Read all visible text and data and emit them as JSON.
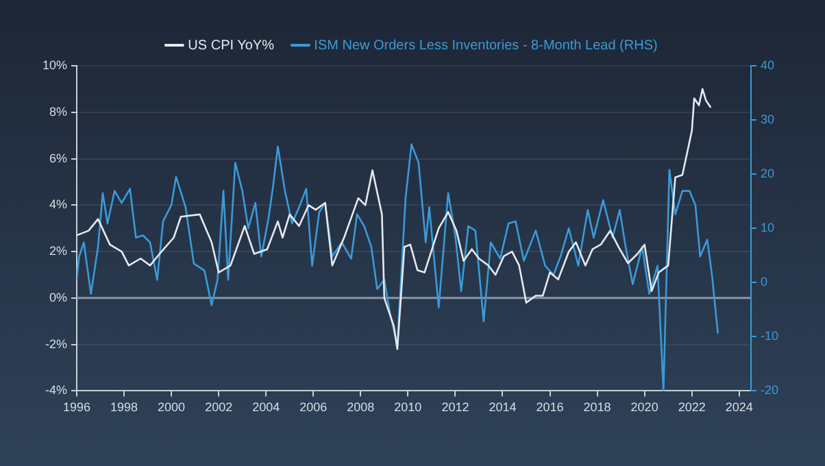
{
  "chart_data": {
    "type": "line",
    "legend": "top",
    "grid": "y",
    "xlim": [
      1996,
      2024.5
    ],
    "xticks": [
      1996,
      1998,
      2000,
      2002,
      2004,
      2006,
      2008,
      2010,
      2012,
      2014,
      2016,
      2018,
      2020,
      2022,
      2024
    ],
    "ylim": [
      -4,
      10
    ],
    "yticks": [
      {
        "value": -4,
        "label": "-4%"
      },
      {
        "value": -2,
        "label": "-2%"
      },
      {
        "value": 0,
        "label": "0%"
      },
      {
        "value": 2,
        "label": "2%"
      },
      {
        "value": 4,
        "label": "4%"
      },
      {
        "value": 6,
        "label": "6%"
      },
      {
        "value": 8,
        "label": "8%"
      },
      {
        "value": 10,
        "label": "10%"
      }
    ],
    "y2lim": [
      -20,
      40
    ],
    "y2ticks": [
      -20,
      -10,
      0,
      10,
      20,
      30,
      40
    ],
    "ref_lines": [
      {
        "axis": "y",
        "value": 0,
        "color": "#8a96a6"
      }
    ],
    "series": [
      {
        "name": "US CPI YoY%",
        "color": "#e6e9ee",
        "x": [
          1996,
          1996.5,
          1996.9,
          1997.4,
          1997.9,
          1998.2,
          1998.7,
          1999.1,
          1999.5,
          2000.1,
          2000.4,
          2001.2,
          2001.7,
          2002.0,
          2002.5,
          2003.1,
          2003.5,
          2004.05,
          2004.5,
          2004.7,
          2005.0,
          2005.4,
          2005.8,
          2006.1,
          2006.5,
          2006.8,
          2007.3,
          2007.9,
          2008.2,
          2008.5,
          2008.9,
          2009.0,
          2009.4,
          2009.55,
          2009.85,
          2010.1,
          2010.4,
          2010.7,
          2011.3,
          2011.7,
          2012.05,
          2012.35,
          2012.7,
          2013.0,
          2013.4,
          2013.7,
          2014.05,
          2014.4,
          2014.7,
          2015.0,
          2015.4,
          2015.7,
          2016.0,
          2016.35,
          2016.8,
          2017.1,
          2017.5,
          2017.8,
          2018.15,
          2018.55,
          2018.9,
          2019.3,
          2019.7,
          2020.0,
          2020.3,
          2020.6,
          2021.0,
          2021.3,
          2021.6,
          2022.0,
          2022.1,
          2022.3,
          2022.45,
          2022.6,
          2022.8
        ],
        "values": [
          2.7,
          2.9,
          3.4,
          2.3,
          2.0,
          1.4,
          1.7,
          1.4,
          1.9,
          2.6,
          3.5,
          3.6,
          2.4,
          1.1,
          1.4,
          3.1,
          1.9,
          2.1,
          3.3,
          2.6,
          3.6,
          3.1,
          4.0,
          3.8,
          4.1,
          1.4,
          2.6,
          4.3,
          4.0,
          5.5,
          3.6,
          0.0,
          -1.2,
          -2.2,
          2.2,
          2.3,
          1.2,
          1.1,
          3.0,
          3.7,
          2.9,
          1.6,
          2.1,
          1.7,
          1.4,
          1.0,
          1.8,
          2.0,
          1.4,
          -0.2,
          0.1,
          0.1,
          1.1,
          0.8,
          2.0,
          2.4,
          1.4,
          2.1,
          2.3,
          2.9,
          2.2,
          1.5,
          1.9,
          2.3,
          0.3,
          1.1,
          1.4,
          5.2,
          5.3,
          7.2,
          8.6,
          8.3,
          9.0,
          8.5,
          8.2
        ]
      },
      {
        "name": "ISM New Orders Less Inventories - 8-Month Lead (RHS)",
        "color": "#3b9ad8",
        "axis": "y2",
        "x": [
          1996,
          1996.1,
          1996.3,
          1996.6,
          1996.9,
          1997.1,
          1997.3,
          1997.6,
          1997.9,
          1998.25,
          1998.5,
          1998.8,
          1999.1,
          1999.4,
          1999.65,
          2000.0,
          2000.2,
          2000.6,
          2000.95,
          2001.4,
          2001.7,
          2001.95,
          2002.2,
          2002.4,
          2002.7,
          2003.0,
          2003.25,
          2003.55,
          2003.8,
          2004.1,
          2004.3,
          2004.5,
          2004.8,
          2005.1,
          2005.4,
          2005.7,
          2005.95,
          2006.25,
          2006.5,
          2006.8,
          2007.2,
          2007.6,
          2007.85,
          2008.15,
          2008.45,
          2008.7,
          2009.0,
          2009.25,
          2009.55,
          2009.9,
          2010.15,
          2010.45,
          2010.75,
          2010.9,
          2011.3,
          2011.7,
          2012.0,
          2012.25,
          2012.55,
          2012.85,
          2013.2,
          2013.5,
          2013.9,
          2014.25,
          2014.55,
          2014.9,
          2015.4,
          2015.8,
          2016.15,
          2016.45,
          2016.8,
          2017.2,
          2017.6,
          2017.85,
          2018.25,
          2018.65,
          2018.95,
          2019.2,
          2019.5,
          2019.9,
          2020.2,
          2020.55,
          2020.8,
          2021.05,
          2021.3,
          2021.6,
          2021.9,
          2022.15,
          2022.35,
          2022.65,
          2022.85,
          2023.1
        ],
        "values": [
          0.5,
          4.8,
          7.4,
          -2.1,
          6.6,
          16.5,
          10.9,
          16.9,
          14.7,
          17.3,
          8.3,
          8.7,
          7.4,
          0.5,
          11.3,
          14.3,
          19.5,
          13.9,
          3.5,
          2.2,
          -4.2,
          0.5,
          16.9,
          0.5,
          22.1,
          16.9,
          10.0,
          14.7,
          4.8,
          11.7,
          17.8,
          25.1,
          16.9,
          10.9,
          13.9,
          17.3,
          3.1,
          13.0,
          14.7,
          4.8,
          7.4,
          4.4,
          12.6,
          10.4,
          6.6,
          -1.2,
          0.5,
          -5.9,
          -11.5,
          15.6,
          25.5,
          22.1,
          7.4,
          13.9,
          -4.6,
          16.5,
          8.7,
          -1.6,
          10.4,
          9.6,
          -7.2,
          7.4,
          4.4,
          10.9,
          11.3,
          4.0,
          9.6,
          3.1,
          1.4,
          4.8,
          10.0,
          3.1,
          13.4,
          8.3,
          15.2,
          8.3,
          13.4,
          6.6,
          -0.3,
          6.6,
          -2.1,
          3.1,
          -20,
          20.8,
          12.6,
          16.9,
          16.9,
          14.3,
          4.8,
          7.9,
          1.4,
          -9.4
        ]
      }
    ]
  }
}
